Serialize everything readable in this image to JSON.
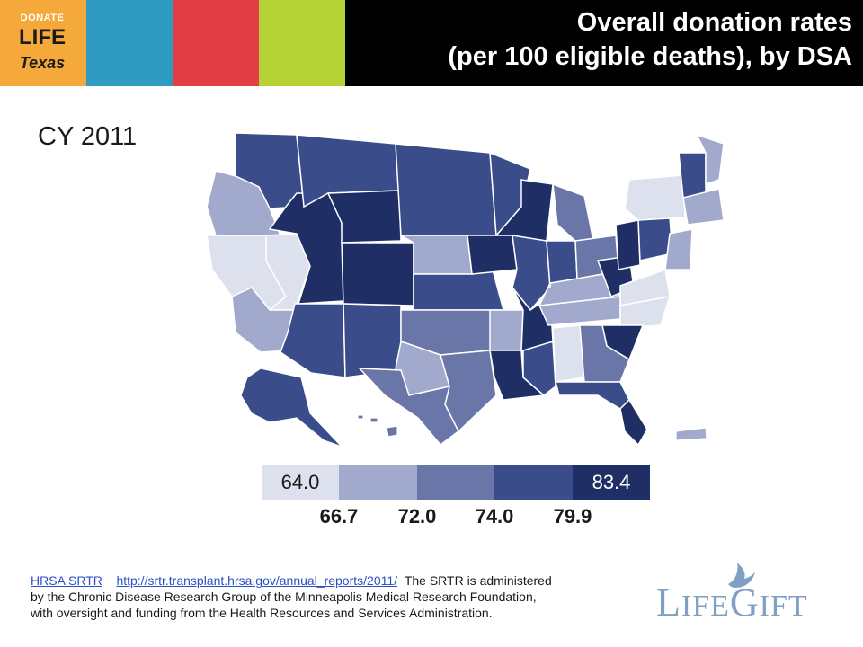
{
  "header": {
    "logo": {
      "line1": "DONATE",
      "line2": "LIFE",
      "line3": "Texas"
    },
    "stripe_colors": [
      "#f5a93b",
      "#2f9bc1",
      "#e33d45",
      "#b5d334"
    ],
    "title_line1": "Overall donation rates",
    "title_line2": "(per 100 eligible deaths), by DSA"
  },
  "year_label": "CY 2011",
  "map": {
    "region": "United States (incl. Alaska, Hawaii, Puerto Rico)",
    "unit": "Organ Procurement Organization Donation Service Areas",
    "colors": {
      "bin1": "#dde1ee",
      "bin2": "#a1a9cc",
      "bin3": "#6a76a8",
      "bin4": "#3a4d8a",
      "bin5": "#1f2f66",
      "border": "#ffffff"
    },
    "legend": {
      "boxes": [
        {
          "label": "64.0",
          "color": "#dde1ee",
          "text_color": "#1a1a1a"
        },
        {
          "label": "",
          "color": "#a1a9cc",
          "text_color": "#1a1a1a"
        },
        {
          "label": "",
          "color": "#6a76a8",
          "text_color": "#ffffff"
        },
        {
          "label": "",
          "color": "#3a4d8a",
          "text_color": "#ffffff"
        },
        {
          "label": "83.4",
          "color": "#1f2f66",
          "text_color": "#ffffff"
        }
      ],
      "breaks": [
        "66.7",
        "72.0",
        "74.0",
        "79.9"
      ]
    }
  },
  "source": {
    "link1": "HRSA SRTR",
    "link2": "http://srtr.transplant.hrsa.gov/annual_reports/2011/",
    "text": "The SRTR is administered by the Chronic Disease Research Group of the Minneapolis Medical Research Foundation, with oversight and funding from the Health Resources and Services Administration."
  },
  "brand": {
    "big1": "L",
    "small1": "IFE",
    "big2": "G",
    "small2": "IFT",
    "color": "#7fa0c2"
  }
}
